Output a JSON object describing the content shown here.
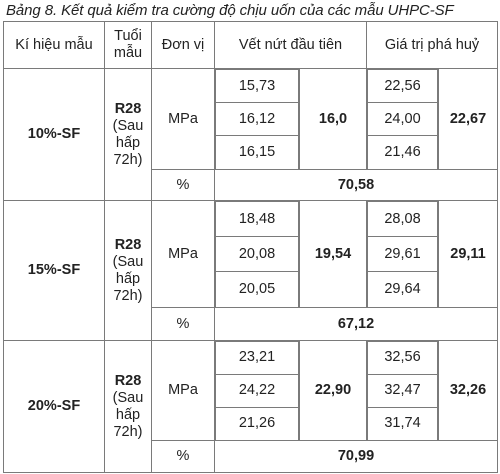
{
  "caption": "Bảng 8. Kết quả kiểm tra cường độ chịu uốn của các mẫu UHPC-SF",
  "headers": {
    "sample_id": "Kí hiệu mẫu",
    "age": "Tuổi mẫu",
    "unit": "Đơn vị",
    "first_crack": "Vết nứt đầu tiên",
    "failure": "Giá trị phá huỷ"
  },
  "rows": [
    {
      "sample": "10%-SF",
      "age_code": "R28",
      "age_note": "(Sau hấp 72h)",
      "unit_mpa": "MPa",
      "crack_values": [
        "15,73",
        "16,12",
        "16,15"
      ],
      "crack_avg": "16,0",
      "fail_values": [
        "22,56",
        "24,00",
        "21,46"
      ],
      "fail_avg": "22,67",
      "unit_pct": "%",
      "pct": "70,58"
    },
    {
      "sample": "15%-SF",
      "age_code": "R28",
      "age_note": "(Sau hấp 72h)",
      "unit_mpa": "MPa",
      "crack_values": [
        "18,48",
        "20,08",
        "20,05"
      ],
      "crack_avg": "19,54",
      "fail_values": [
        "28,08",
        "29,61",
        "29,64"
      ],
      "fail_avg": "29,11",
      "unit_pct": "%",
      "pct": "67,12"
    },
    {
      "sample": "20%-SF",
      "age_code": "R28",
      "age_note": "(Sau hấp 72h)",
      "unit_mpa": "MPa",
      "crack_values": [
        "23,21",
        "24,22",
        "21,26"
      ],
      "crack_avg": "22,90",
      "fail_values": [
        "32,56",
        "32,47",
        "31,74"
      ],
      "fail_avg": "32,26",
      "unit_pct": "%",
      "pct": "70,99"
    }
  ]
}
